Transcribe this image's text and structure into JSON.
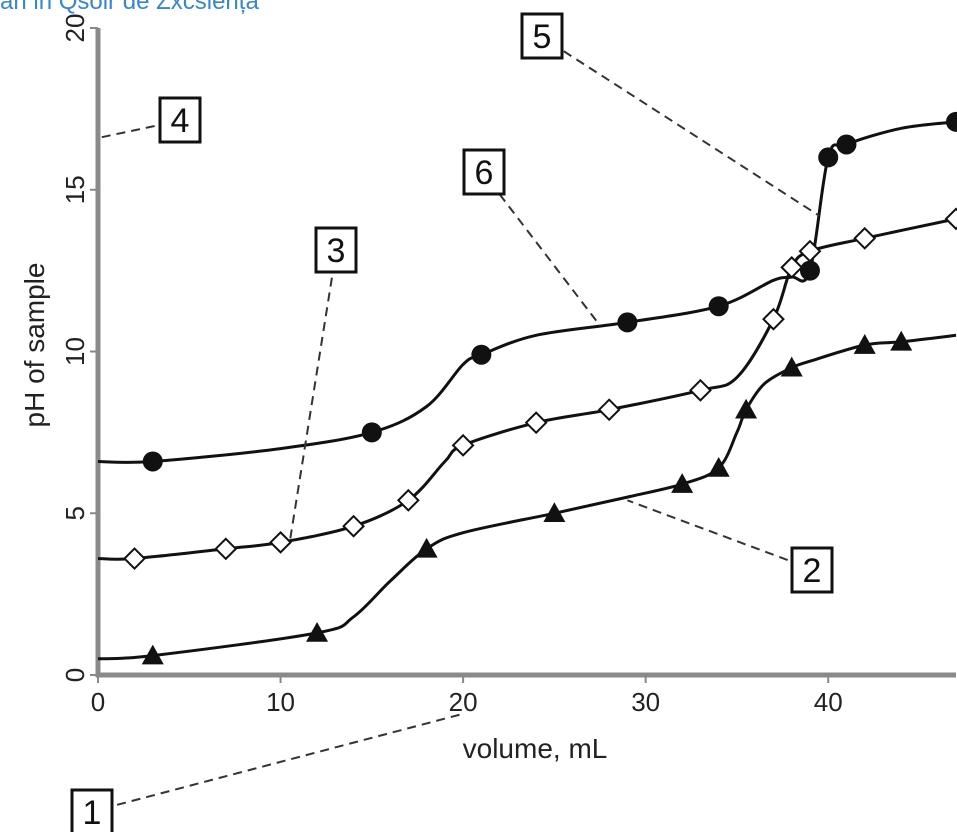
{
  "header_text": "an in Qsolr de Zxcsiența",
  "chart_data": {
    "type": "line",
    "title": "",
    "xlabel": "volume,  mL",
    "ylabel": "pH of sample",
    "xlim": [
      0,
      47
    ],
    "ylim": [
      0,
      20
    ],
    "x_ticks": [
      0,
      10,
      20,
      30,
      40
    ],
    "x_tick_labels": [
      "0",
      "10",
      "20",
      "30",
      "40"
    ],
    "y_ticks": [
      0,
      5,
      10,
      15,
      20
    ],
    "y_tick_labels": [
      "0",
      "5",
      "10",
      "15",
      "20"
    ],
    "series": [
      {
        "marker": "filled-circle",
        "color": "#111111",
        "points": [
          [
            0,
            6.6
          ],
          [
            3,
            6.6
          ],
          [
            10,
            7
          ],
          [
            15,
            7.5
          ],
          [
            18,
            8.3
          ],
          [
            20,
            9.6
          ],
          [
            21,
            9.9
          ],
          [
            24,
            10.5
          ],
          [
            29,
            10.9
          ],
          [
            34,
            11.4
          ],
          [
            37,
            12.2
          ],
          [
            38,
            12.3
          ],
          [
            39,
            12.5
          ],
          [
            40,
            16
          ],
          [
            41,
            16.4
          ],
          [
            44,
            16.9
          ],
          [
            47,
            17.1
          ]
        ]
      },
      {
        "marker": "open-diamond",
        "color": "#111111",
        "points": [
          [
            0,
            3.6
          ],
          [
            2,
            3.6
          ],
          [
            7,
            3.9
          ],
          [
            10,
            4.1
          ],
          [
            14,
            4.6
          ],
          [
            17,
            5.4
          ],
          [
            19,
            6.6
          ],
          [
            20,
            7.1
          ],
          [
            24,
            7.8
          ],
          [
            28,
            8.2
          ],
          [
            33,
            8.8
          ],
          [
            35,
            9.2
          ],
          [
            37,
            11
          ],
          [
            38,
            12.6
          ],
          [
            39,
            13.1
          ],
          [
            42,
            13.5
          ],
          [
            47,
            14.1
          ]
        ]
      },
      {
        "marker": "filled-triangle",
        "color": "#111111",
        "points": [
          [
            0,
            0.5
          ],
          [
            3,
            0.6
          ],
          [
            12,
            1.3
          ],
          [
            14,
            1.8
          ],
          [
            16,
            2.9
          ],
          [
            18,
            3.9
          ],
          [
            20,
            4.4
          ],
          [
            25,
            5
          ],
          [
            29,
            5.5
          ],
          [
            32,
            5.9
          ],
          [
            34,
            6.4
          ],
          [
            35,
            7.5
          ],
          [
            35.5,
            8.2
          ],
          [
            36.5,
            9
          ],
          [
            38,
            9.5
          ],
          [
            39,
            9.7
          ],
          [
            42,
            10.2
          ],
          [
            44,
            10.3
          ],
          [
            47,
            10.5
          ]
        ]
      }
    ],
    "annotations": [
      {
        "label": "1",
        "points_to": [
          20,
          -1.2
        ]
      },
      {
        "label": "2",
        "points_to": [
          29,
          5.4
        ]
      },
      {
        "label": "3",
        "points_to": [
          10.5,
          4.1
        ]
      },
      {
        "label": "4",
        "points_to": [
          0,
          16.6
        ]
      },
      {
        "label": "5",
        "points_to": [
          39.5,
          14.2
        ]
      },
      {
        "label": "6",
        "points_to": [
          27.5,
          10.8
        ]
      }
    ]
  }
}
